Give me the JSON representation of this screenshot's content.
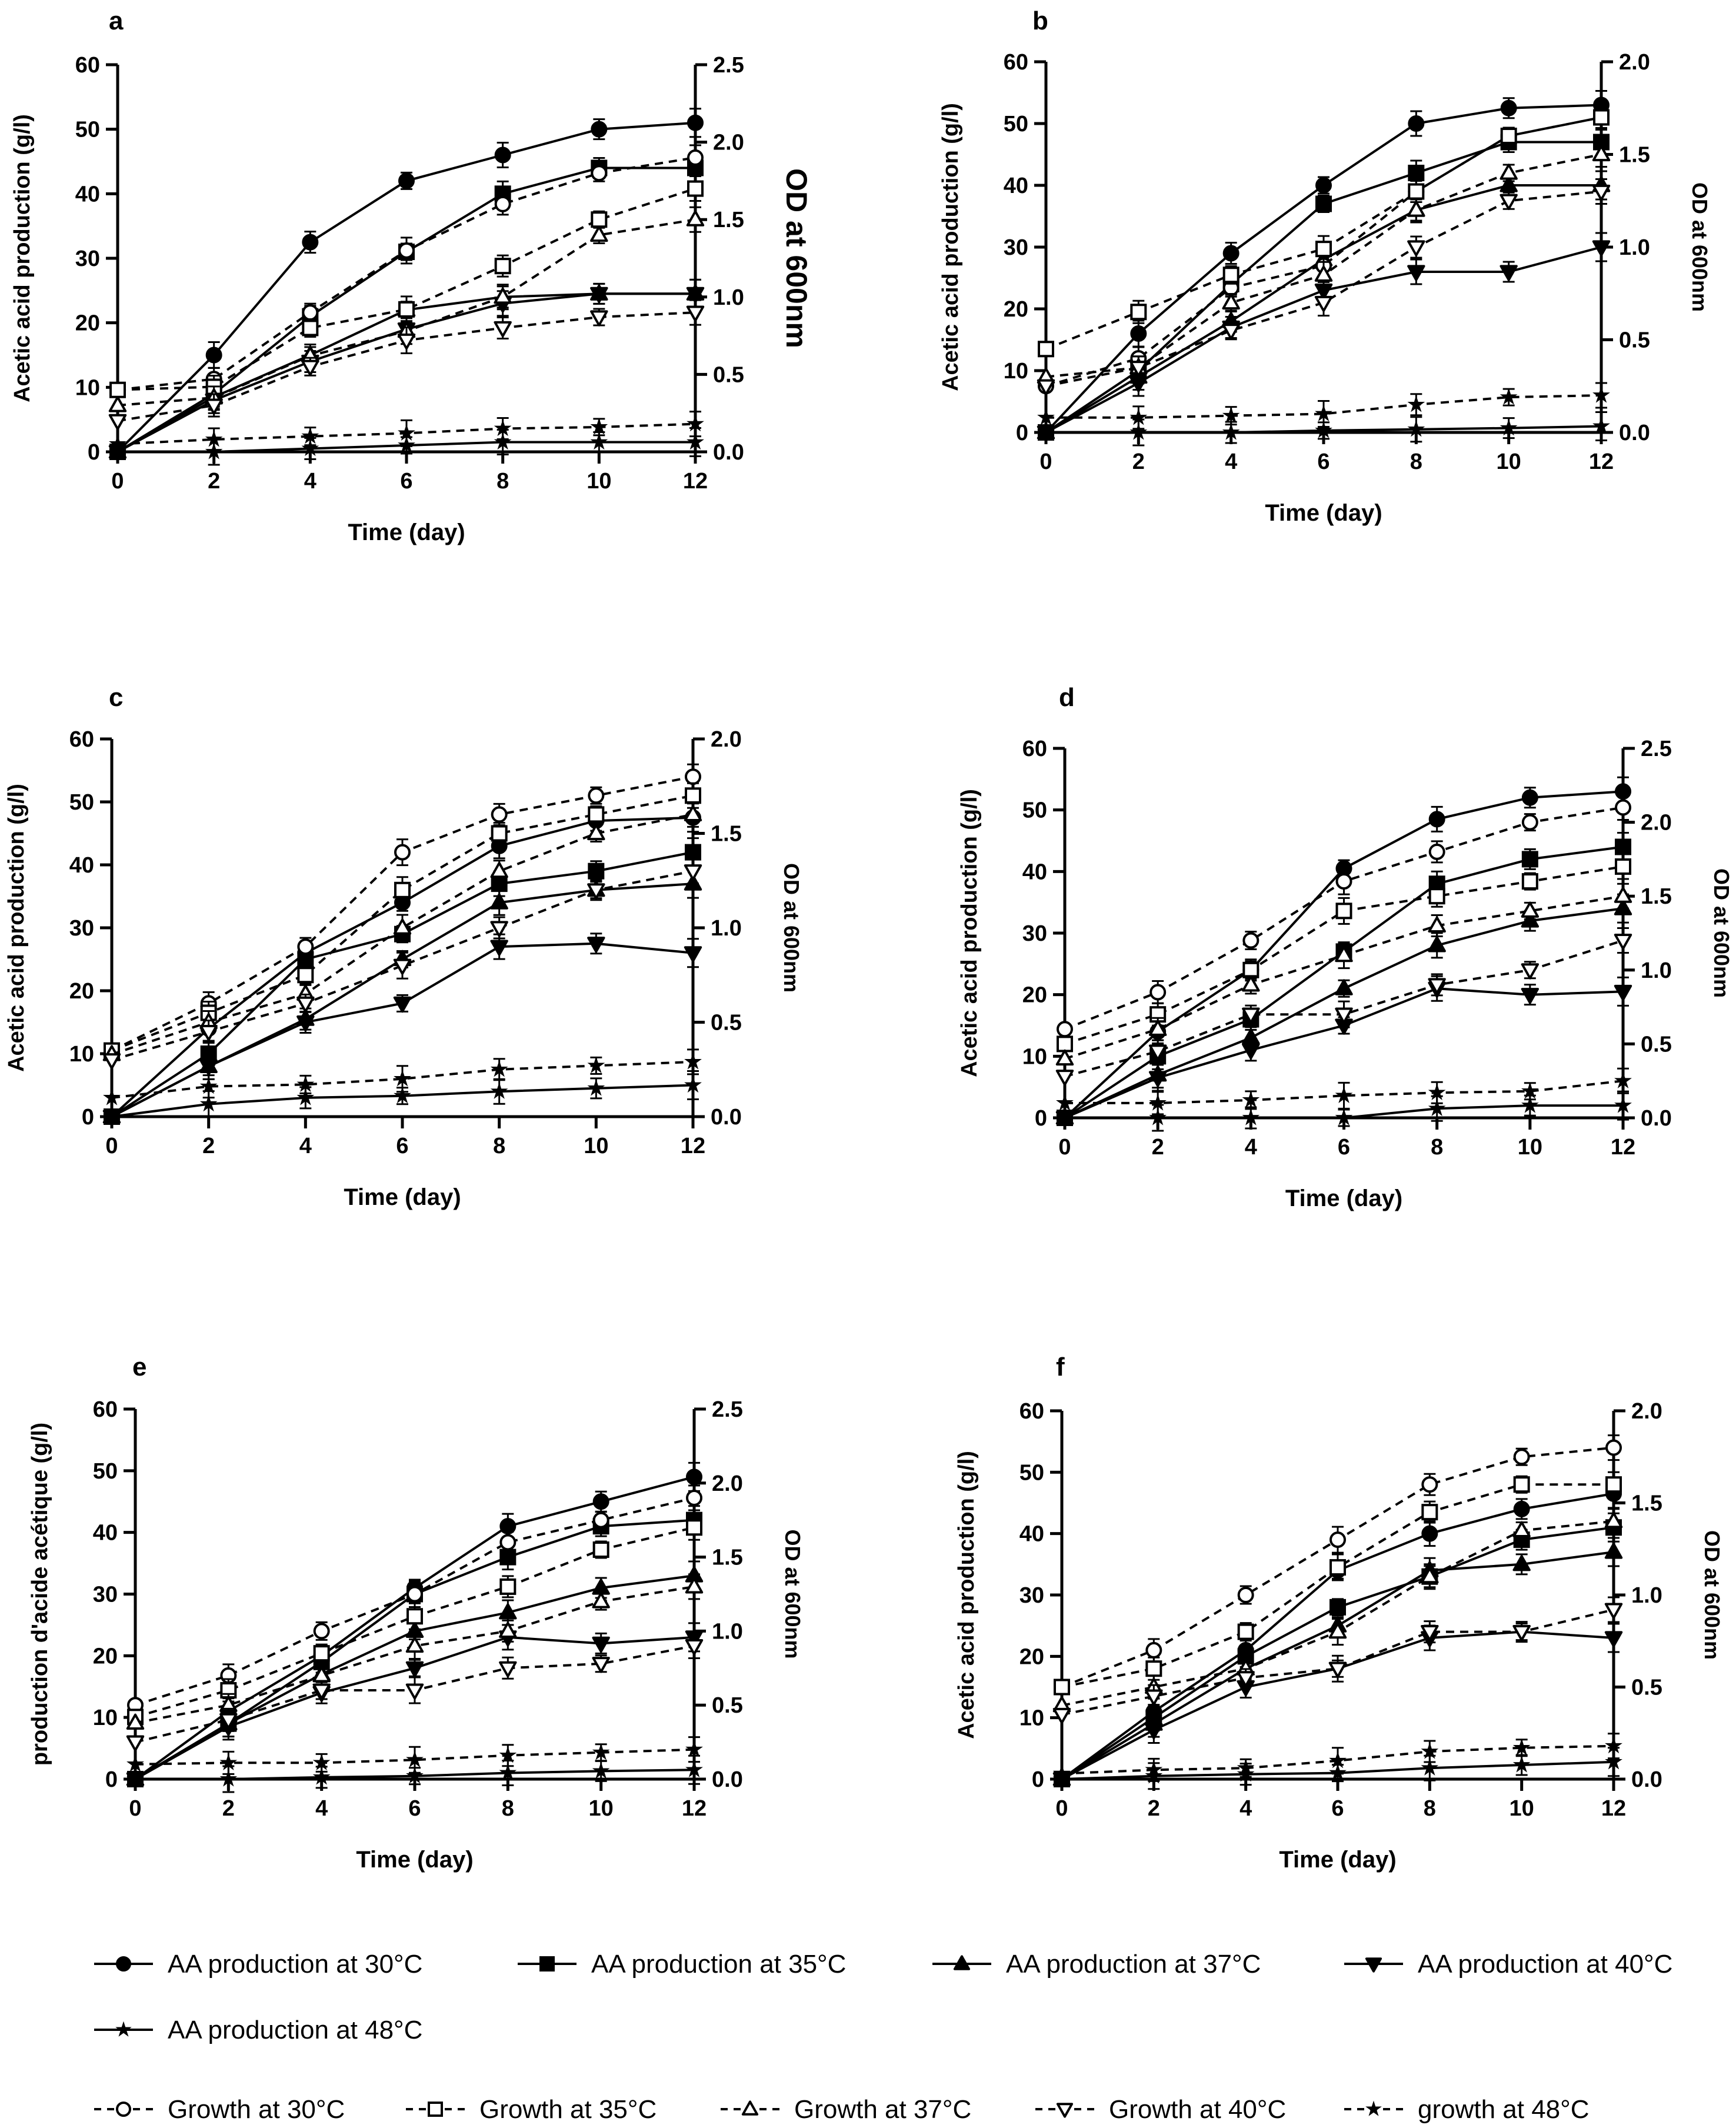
{
  "figure": {
    "x_ticks": [
      "0",
      "2",
      "4",
      "6",
      "8",
      "10",
      "12"
    ]
  },
  "legend": {
    "aa30": "AA production at 30°C",
    "aa35": "AA production at 35°C",
    "aa37": "AA production at 37°C",
    "aa40": "AA production at 40°C",
    "aa48": "AA production at 48°C",
    "g30": "Growth at 30°C",
    "g35": "Growth at 35°C",
    "g37": "Growth at 37°C",
    "g40": "Growth at 40°C",
    "g48": "growth at 48°C"
  },
  "chart_data": [
    {
      "type": "line",
      "panel_label": "a",
      "xlabel": "Time (day)",
      "ylabel": "Acetic acid production (g/l)",
      "y2label": "OD at 600nm",
      "x": [
        0,
        2,
        4,
        6,
        8,
        10,
        12
      ],
      "ylim": [
        0,
        60
      ],
      "y2lim": [
        0,
        2.5
      ],
      "y_ticks": [
        "0",
        "10",
        "20",
        "30",
        "40",
        "50",
        "60"
      ],
      "y2_ticks": [
        "0.0",
        "0.5",
        "1.0",
        "1.5",
        "2.0",
        "2.5"
      ],
      "series": [
        {
          "name": "AA production at 30°C",
          "key": "aa30",
          "values": [
            0,
            15,
            32.5,
            42,
            46,
            50,
            51
          ]
        },
        {
          "name": "AA production at 35°C",
          "key": "aa35",
          "values": [
            0,
            9,
            21,
            31,
            40,
            44,
            44
          ]
        },
        {
          "name": "AA production at 37°C",
          "key": "aa37",
          "values": [
            0,
            8.5,
            15,
            22,
            24,
            24.5,
            24.5
          ]
        },
        {
          "name": "AA production at 40°C",
          "key": "aa40",
          "values": [
            0,
            8,
            14,
            19,
            23,
            24.5,
            24.5
          ]
        },
        {
          "name": "AA production at 48°C",
          "key": "aa48",
          "values": [
            0,
            0,
            0.5,
            1,
            1.5,
            1.5,
            1.5
          ]
        },
        {
          "name": "Growth at 30°C",
          "key": "g30",
          "values": [
            0.4,
            0.47,
            0.9,
            1.3,
            1.6,
            1.8,
            1.9
          ]
        },
        {
          "name": "Growth at 35°C",
          "key": "g35",
          "values": [
            0.4,
            0.42,
            0.8,
            0.92,
            1.2,
            1.5,
            1.7
          ]
        },
        {
          "name": "Growth at 37°C",
          "key": "g37",
          "values": [
            0.3,
            0.35,
            0.62,
            0.78,
            1.0,
            1.4,
            1.5
          ]
        },
        {
          "name": "Growth at 40°C",
          "key": "g40",
          "values": [
            0.2,
            0.3,
            0.55,
            0.72,
            0.8,
            0.87,
            0.9
          ]
        },
        {
          "name": "growth at 48°C",
          "key": "g48",
          "values": [
            0.05,
            0.08,
            0.1,
            0.12,
            0.15,
            0.16,
            0.18
          ]
        }
      ]
    },
    {
      "type": "line",
      "panel_label": "b",
      "xlabel": "Time (day)",
      "ylabel": "Acetic acid production (g/l)",
      "y2label": "OD at 600nm",
      "x": [
        0,
        2,
        4,
        6,
        8,
        10,
        12
      ],
      "ylim": [
        0,
        60
      ],
      "y2lim": [
        0,
        2.0
      ],
      "y_ticks": [
        "0",
        "10",
        "20",
        "30",
        "40",
        "50",
        "60"
      ],
      "y2_ticks": [
        "0.0",
        "0.5",
        "1.0",
        "1.5",
        "2.0"
      ],
      "series": [
        {
          "name": "AA production at 30°C",
          "key": "aa30",
          "values": [
            0,
            16,
            29,
            40,
            50,
            52.5,
            53
          ]
        },
        {
          "name": "AA production at 35°C",
          "key": "aa35",
          "values": [
            0,
            10,
            24,
            37,
            42,
            47,
            47
          ]
        },
        {
          "name": "AA production at 37°C",
          "key": "aa37",
          "values": [
            0,
            9,
            18,
            28,
            36,
            40,
            40
          ]
        },
        {
          "name": "AA production at 40°C",
          "key": "aa40",
          "values": [
            0,
            8,
            17,
            23,
            26,
            26,
            30
          ]
        },
        {
          "name": "AA production at 48°C",
          "key": "aa48",
          "values": [
            0,
            0,
            0,
            0.3,
            0.5,
            0.7,
            1
          ]
        },
        {
          "name": "Growth at 30°C",
          "key": "g30",
          "values": [
            0.25,
            0.4,
            0.78,
            0.9,
            1.3,
            1.6,
            1.7
          ]
        },
        {
          "name": "Growth at 35°C",
          "key": "g35",
          "values": [
            0.45,
            0.65,
            0.85,
            0.99,
            1.3,
            1.6,
            1.7
          ]
        },
        {
          "name": "Growth at 37°C",
          "key": "g37",
          "values": [
            0.3,
            0.35,
            0.7,
            0.85,
            1.2,
            1.4,
            1.5
          ]
        },
        {
          "name": "Growth at 40°C",
          "key": "g40",
          "values": [
            0.25,
            0.35,
            0.55,
            0.7,
            1.0,
            1.25,
            1.3
          ]
        },
        {
          "name": "growth at 48°C",
          "key": "g48",
          "values": [
            0.08,
            0.08,
            0.09,
            0.1,
            0.15,
            0.19,
            0.2
          ]
        }
      ]
    },
    {
      "type": "line",
      "panel_label": "c",
      "xlabel": "Time (day)",
      "ylabel": "Acetic acid production (g/l)",
      "y2label": "OD at 600nm",
      "x": [
        0,
        2,
        4,
        6,
        8,
        10,
        12
      ],
      "ylim": [
        0,
        60
      ],
      "y2lim": [
        0,
        2.0
      ],
      "y_ticks": [
        "0",
        "10",
        "20",
        "30",
        "40",
        "50",
        "60"
      ],
      "y2_ticks": [
        "0.0",
        "0.5",
        "1.0",
        "1.5",
        "2.0"
      ],
      "series": [
        {
          "name": "AA production at 30°C",
          "key": "aa30",
          "values": [
            0,
            14,
            26,
            34,
            43,
            47,
            47.5
          ]
        },
        {
          "name": "AA production at 35°C",
          "key": "aa35",
          "values": [
            0,
            10,
            25,
            29,
            37,
            39,
            42
          ]
        },
        {
          "name": "AA production at 37°C",
          "key": "aa37",
          "values": [
            0,
            8,
            15.5,
            25,
            34,
            36,
            37
          ]
        },
        {
          "name": "AA production at 40°C",
          "key": "aa40",
          "values": [
            0,
            8,
            15,
            18,
            27,
            27.5,
            26
          ]
        },
        {
          "name": "AA production at 48°C",
          "key": "aa48",
          "values": [
            0,
            2,
            3,
            3.3,
            4,
            4.5,
            5
          ]
        },
        {
          "name": "Growth at 30°C",
          "key": "g30",
          "values": [
            0.35,
            0.6,
            0.9,
            1.4,
            1.6,
            1.7,
            1.8
          ]
        },
        {
          "name": "Growth at 35°C",
          "key": "g35",
          "values": [
            0.35,
            0.55,
            0.75,
            1.2,
            1.5,
            1.6,
            1.7
          ]
        },
        {
          "name": "Growth at 37°C",
          "key": "g37",
          "values": [
            0.33,
            0.5,
            0.65,
            1.0,
            1.3,
            1.5,
            1.6
          ]
        },
        {
          "name": "Growth at 40°C",
          "key": "g40",
          "values": [
            0.3,
            0.45,
            0.6,
            0.8,
            1.0,
            1.2,
            1.3
          ]
        },
        {
          "name": "growth at 48°C",
          "key": "g48",
          "values": [
            0.1,
            0.16,
            0.17,
            0.2,
            0.25,
            0.27,
            0.29
          ]
        }
      ]
    },
    {
      "type": "line",
      "panel_label": "d",
      "xlabel": "Time (day)",
      "ylabel": "Acetic acid production (g/l)",
      "y2label": "OD at 600nm",
      "x": [
        0,
        2,
        4,
        6,
        8,
        10,
        12
      ],
      "ylim": [
        0,
        60
      ],
      "y2lim": [
        0,
        2.5
      ],
      "y_ticks": [
        "0",
        "10",
        "20",
        "30",
        "40",
        "50",
        "60"
      ],
      "y2_ticks": [
        "0.0",
        "0.5",
        "1.0",
        "1.5",
        "2.0",
        "2.5"
      ],
      "series": [
        {
          "name": "AA production at 30°C",
          "key": "aa30",
          "values": [
            0,
            14,
            24,
            40.5,
            48.5,
            52,
            53
          ]
        },
        {
          "name": "AA production at 35°C",
          "key": "aa35",
          "values": [
            0,
            10,
            16,
            27,
            38,
            42,
            44
          ]
        },
        {
          "name": "AA production at 37°C",
          "key": "aa37",
          "values": [
            0,
            7,
            13,
            21,
            28,
            32,
            34
          ]
        },
        {
          "name": "AA production at 40°C",
          "key": "aa40",
          "values": [
            0,
            6.5,
            11,
            15,
            21,
            20,
            20.5
          ]
        },
        {
          "name": "AA production at 48°C",
          "key": "aa48",
          "values": [
            0,
            0,
            0,
            0,
            1.5,
            2,
            2
          ]
        },
        {
          "name": "Growth at 30°C",
          "key": "g30",
          "values": [
            0.6,
            0.85,
            1.2,
            1.6,
            1.8,
            2.0,
            2.1
          ]
        },
        {
          "name": "Growth at 35°C",
          "key": "g35",
          "values": [
            0.5,
            0.7,
            1.0,
            1.4,
            1.5,
            1.6,
            1.7
          ]
        },
        {
          "name": "Growth at 37°C",
          "key": "g37",
          "values": [
            0.4,
            0.6,
            0.9,
            1.1,
            1.3,
            1.4,
            1.5
          ]
        },
        {
          "name": "Growth at 40°C",
          "key": "g40",
          "values": [
            0.28,
            0.45,
            0.7,
            0.7,
            0.9,
            1.0,
            1.2
          ]
        },
        {
          "name": "growth at 48°C",
          "key": "g48",
          "values": [
            0.1,
            0.1,
            0.12,
            0.15,
            0.17,
            0.18,
            0.25
          ]
        }
      ]
    },
    {
      "type": "line",
      "panel_label": "e",
      "xlabel": "Time (day)",
      "ylabel": "production d'acide acétique (g/l)",
      "y2label": "OD at 600nm",
      "x": [
        0,
        2,
        4,
        6,
        8,
        10,
        12
      ],
      "ylim": [
        0,
        60
      ],
      "y2lim": [
        0,
        2.5
      ],
      "y_ticks": [
        "0",
        "10",
        "20",
        "30",
        "40",
        "50",
        "60"
      ],
      "y2_ticks": [
        "0.0",
        "0.5",
        "1.0",
        "1.5",
        "2.0",
        "2.5"
      ],
      "series": [
        {
          "name": "AA production at 30°C",
          "key": "aa30",
          "values": [
            0,
            11,
            20,
            31,
            41,
            45,
            49
          ]
        },
        {
          "name": "AA production at 35°C",
          "key": "aa35",
          "values": [
            0,
            9,
            19,
            30,
            36,
            41,
            42
          ]
        },
        {
          "name": "AA production at 37°C",
          "key": "aa37",
          "values": [
            0,
            9,
            17,
            24,
            27,
            31,
            33
          ]
        },
        {
          "name": "AA production at 40°C",
          "key": "aa40",
          "values": [
            0,
            8.5,
            14,
            18,
            23,
            22,
            23
          ]
        },
        {
          "name": "AA production at 48°C",
          "key": "aa48",
          "values": [
            0,
            0,
            0.3,
            0.5,
            1,
            1.3,
            1.5
          ]
        },
        {
          "name": "Growth at 30°C",
          "key": "g30",
          "values": [
            0.5,
            0.7,
            1.0,
            1.25,
            1.6,
            1.75,
            1.9
          ]
        },
        {
          "name": "Growth at 35°C",
          "key": "g35",
          "values": [
            0.42,
            0.6,
            0.85,
            1.1,
            1.3,
            1.55,
            1.7
          ]
        },
        {
          "name": "Growth at 37°C",
          "key": "g37",
          "values": [
            0.38,
            0.5,
            0.7,
            0.9,
            1.0,
            1.2,
            1.3
          ]
        },
        {
          "name": "Growth at 40°C",
          "key": "g40",
          "values": [
            0.25,
            0.4,
            0.6,
            0.6,
            0.75,
            0.78,
            0.9
          ]
        },
        {
          "name": "growth at 48°C",
          "key": "g48",
          "values": [
            0.1,
            0.11,
            0.11,
            0.13,
            0.16,
            0.18,
            0.2
          ]
        }
      ]
    },
    {
      "type": "line",
      "panel_label": "f",
      "xlabel": "Time (day)",
      "ylabel": "Acetic acid production (g/l)",
      "y2label": "OD at 600nm",
      "x": [
        0,
        2,
        4,
        6,
        8,
        10,
        12
      ],
      "ylim": [
        0,
        60
      ],
      "y2lim": [
        0,
        2.0
      ],
      "y_ticks": [
        "0",
        "10",
        "20",
        "30",
        "40",
        "50",
        "60"
      ],
      "y2_ticks": [
        "0.0",
        "0.5",
        "1.0",
        "1.5",
        "2.0"
      ],
      "series": [
        {
          "name": "AA production at 30°C",
          "key": "aa30",
          "values": [
            0,
            11,
            21,
            34,
            40,
            44,
            46.5
          ]
        },
        {
          "name": "AA production at 35°C",
          "key": "aa35",
          "values": [
            0,
            10,
            20,
            28,
            33,
            39,
            41
          ]
        },
        {
          "name": "AA production at 37°C",
          "key": "aa37",
          "values": [
            0,
            9,
            18,
            25,
            34,
            35,
            37
          ]
        },
        {
          "name": "AA production at 40°C",
          "key": "aa40",
          "values": [
            0,
            8,
            15,
            18,
            23,
            24,
            23
          ]
        },
        {
          "name": "AA production at 48°C",
          "key": "aa48",
          "values": [
            0,
            0.5,
            0.8,
            1,
            1.8,
            2.3,
            2.8
          ]
        },
        {
          "name": "Growth at 30°C",
          "key": "g30",
          "values": [
            0.5,
            0.7,
            1.0,
            1.3,
            1.6,
            1.75,
            1.8
          ]
        },
        {
          "name": "Growth at 35°C",
          "key": "g35",
          "values": [
            0.5,
            0.6,
            0.8,
            1.15,
            1.45,
            1.6,
            1.6
          ]
        },
        {
          "name": "Growth at 37°C",
          "key": "g37",
          "values": [
            0.4,
            0.5,
            0.6,
            0.8,
            1.1,
            1.35,
            1.4
          ]
        },
        {
          "name": "Growth at 40°C",
          "key": "g40",
          "values": [
            0.35,
            0.45,
            0.55,
            0.6,
            0.8,
            0.8,
            0.92
          ]
        },
        {
          "name": "growth at 48°C",
          "key": "g48",
          "values": [
            0.03,
            0.05,
            0.06,
            0.1,
            0.15,
            0.17,
            0.18
          ]
        }
      ]
    }
  ]
}
